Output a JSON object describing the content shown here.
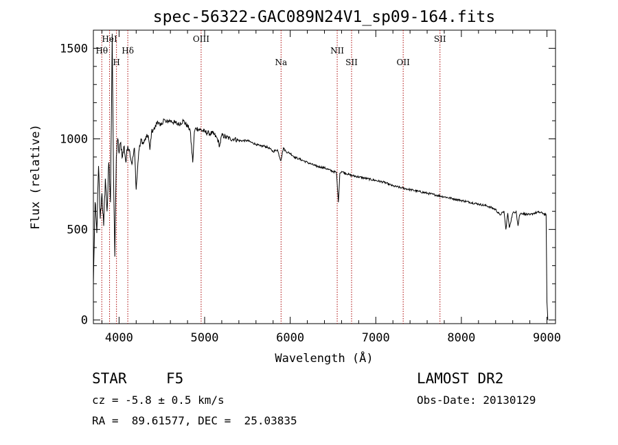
{
  "chart_data": {
    "type": "line",
    "title": "spec-56322-GAC089N24V1_sp09-164.fits",
    "xlabel": "Wavelength (Å)",
    "ylabel": "Flux (relative)",
    "xlim": [
      3700,
      9100
    ],
    "ylim": [
      -20,
      1600
    ],
    "xticks": [
      4000,
      5000,
      6000,
      7000,
      8000,
      9000
    ],
    "yticks": [
      0,
      500,
      1000,
      1500
    ],
    "grid": false,
    "legend": "none",
    "line_color": "#000000",
    "marker_color": "#aa0000",
    "series": [
      {
        "x": [
          3700,
          3720,
          3740,
          3760,
          3780,
          3800,
          3820,
          3840,
          3860,
          3880,
          3900,
          3920,
          3935,
          3950,
          3968,
          3985,
          4000,
          4020,
          4040,
          4060,
          4080,
          4102,
          4120,
          4150,
          4180,
          4200,
          4230,
          4260,
          4280,
          4300,
          4320,
          4340,
          4360,
          4380,
          4400,
          4420,
          4450,
          4480,
          4500,
          4520,
          4550,
          4580,
          4600,
          4650,
          4700,
          4750,
          4800,
          4830,
          4861,
          4880,
          4900,
          4950,
          5000,
          5050,
          5100,
          5150,
          5175,
          5200,
          5250,
          5300,
          5350,
          5400,
          5450,
          5500,
          5550,
          5600,
          5650,
          5700,
          5750,
          5800,
          5850,
          5890,
          5920,
          5950,
          6000,
          6050,
          6100,
          6150,
          6200,
          6250,
          6300,
          6350,
          6400,
          6450,
          6500,
          6540,
          6563,
          6580,
          6600,
          6700,
          6800,
          6900,
          7000,
          7100,
          7200,
          7300,
          7400,
          7500,
          7600,
          7700,
          7800,
          7900,
          8000,
          8100,
          8200,
          8300,
          8400,
          8450,
          8498,
          8520,
          8542,
          8560,
          8600,
          8640,
          8662,
          8680,
          8700,
          8750,
          8800,
          8850,
          8900,
          8950,
          8990,
          9000,
          9010
        ],
        "y": [
          200,
          650,
          480,
          850,
          560,
          700,
          520,
          780,
          600,
          870,
          650,
          1580,
          800,
          350,
          900,
          1000,
          920,
          980,
          900,
          960,
          870,
          960,
          940,
          860,
          950,
          720,
          930,
          1000,
          970,
          990,
          1010,
          1020,
          940,
          1040,
          1050,
          1060,
          1100,
          1070,
          1080,
          1110,
          1090,
          1100,
          1100,
          1090,
          1080,
          1100,
          1070,
          1050,
          870,
          1040,
          1060,
          1050,
          1040,
          1030,
          1030,
          1000,
          960,
          1020,
          1010,
          1000,
          1000,
          990,
          990,
          990,
          980,
          970,
          960,
          960,
          950,
          930,
          940,
          880,
          950,
          930,
          920,
          900,
          890,
          880,
          870,
          860,
          850,
          845,
          840,
          830,
          820,
          815,
          650,
          810,
          820,
          800,
          790,
          780,
          770,
          760,
          740,
          730,
          720,
          710,
          700,
          690,
          680,
          670,
          660,
          650,
          640,
          630,
          610,
          580,
          600,
          500,
          590,
          510,
          590,
          600,
          520,
          580,
          590,
          585,
          580,
          590,
          595,
          590,
          580,
          100,
          0
        ]
      }
    ],
    "line_markers": [
      {
        "label": "Hθ",
        "x": 3798,
        "row": 2
      },
      {
        "label": "HeI",
        "x": 3889,
        "row": 1
      },
      {
        "label": "H",
        "x": 3970,
        "row": 3
      },
      {
        "label": "Hδ",
        "x": 4102,
        "row": 2
      },
      {
        "label": "OIII",
        "x": 4959,
        "row": 1
      },
      {
        "label": "Na",
        "x": 5893,
        "row": 3
      },
      {
        "label": "NII",
        "x": 6549,
        "row": 2
      },
      {
        "label": "SII",
        "x": 6717,
        "row": 3
      },
      {
        "label": "OII",
        "x": 7320,
        "row": 3
      },
      {
        "label": "SII",
        "x": 7750,
        "row": 1
      }
    ]
  },
  "info": {
    "object_class": "STAR",
    "subclass": "F5",
    "survey": "LAMOST DR2",
    "cz": "cz = -5.8 ± 0.5 km/s",
    "obs_date": "Obs-Date: 20130129",
    "coords": "RA =  89.61577, DEC =  25.03835"
  }
}
